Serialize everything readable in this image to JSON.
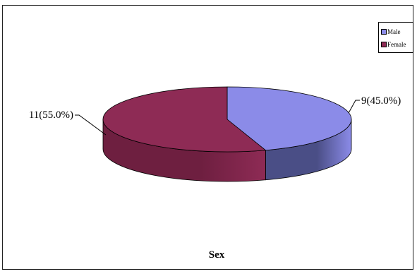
{
  "chart_data": {
    "type": "pie",
    "title": "Sex",
    "three_d": true,
    "legend_position": "top-right",
    "slices": [
      {
        "name": "Male",
        "value": 9,
        "percent": 45.0,
        "label": "9(45.0%)",
        "color": "#8B8BE8",
        "side_color": "#4A4E86"
      },
      {
        "name": "Female",
        "value": 11,
        "percent": 55.0,
        "label": "11(55.0%)",
        "color": "#8E2B55",
        "side_color": "#6E1F40"
      }
    ]
  }
}
